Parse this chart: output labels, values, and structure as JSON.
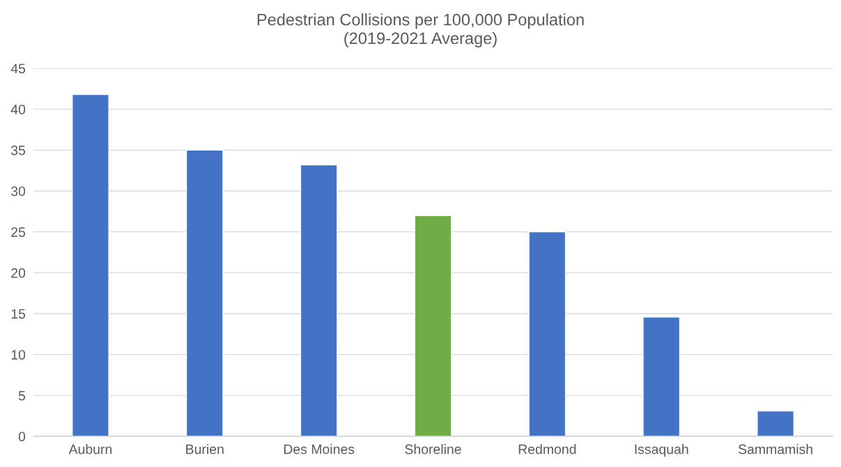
{
  "chart_data": {
    "type": "bar",
    "title": "Pedestrian Collisions per 100,000 Population",
    "subtitle": "(2019-2021 Average)",
    "categories": [
      "Auburn",
      "Burien",
      "Des Moines",
      "Shoreline",
      "Redmond",
      "Issaquah",
      "Sammamish"
    ],
    "values": [
      41.8,
      35.0,
      33.2,
      27.0,
      25.0,
      14.6,
      3.1
    ],
    "colors": [
      "#4472c4",
      "#4472c4",
      "#4472c4",
      "#70ad47",
      "#4472c4",
      "#4472c4",
      "#4472c4"
    ],
    "ylim": [
      0,
      45
    ],
    "yticks": [
      0,
      5,
      10,
      15,
      20,
      25,
      30,
      35,
      40,
      45
    ],
    "grid": "y"
  }
}
